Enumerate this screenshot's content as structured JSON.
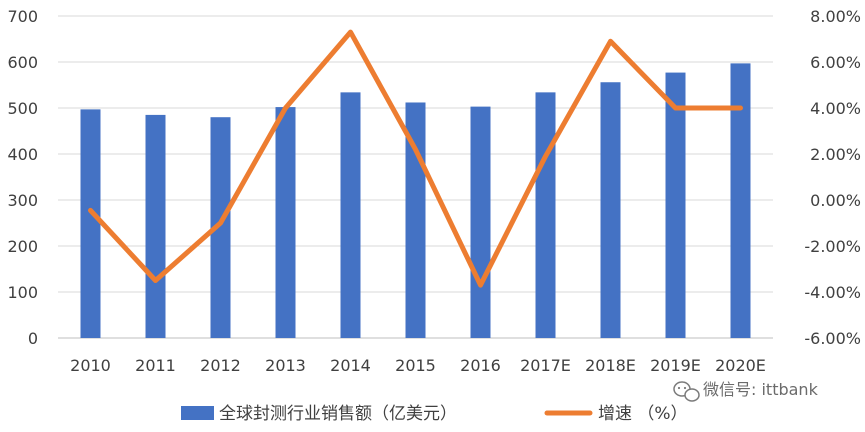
{
  "chart_data": {
    "type": "bar+line",
    "title": "",
    "categories": [
      "2010",
      "2011",
      "2012",
      "2013",
      "2014",
      "2015",
      "2016",
      "2017E",
      "2018E",
      "2019E",
      "2020E"
    ],
    "series": [
      {
        "name": "全球封测行业销售额（亿美元）",
        "type": "bar",
        "axis": "left",
        "color": "#4472C4",
        "values": [
          497,
          485,
          480,
          502,
          534,
          512,
          503,
          534,
          556,
          577,
          597
        ]
      },
      {
        "name": "增速 （%）",
        "type": "line",
        "axis": "right",
        "color": "#ED7D31",
        "values": [
          -0.45,
          -3.5,
          -1.0,
          4.0,
          7.3,
          2.2,
          -3.7,
          1.9,
          6.9,
          4.0,
          4.0
        ]
      }
    ],
    "y_left": {
      "min": 0,
      "max": 700,
      "step": 100,
      "ticks": [
        "0",
        "100",
        "200",
        "300",
        "400",
        "500",
        "600",
        "700"
      ]
    },
    "y_right": {
      "min": -6,
      "max": 8,
      "step": 2,
      "ticks": [
        "-6.00%",
        "-4.00%",
        "-2.00%",
        "0.00%",
        "2.00%",
        "4.00%",
        "6.00%",
        "8.00%"
      ]
    },
    "grid": true,
    "legend": "bottom"
  },
  "watermark": {
    "text": "微信号: ittbank",
    "icon": "wechat-icon"
  }
}
